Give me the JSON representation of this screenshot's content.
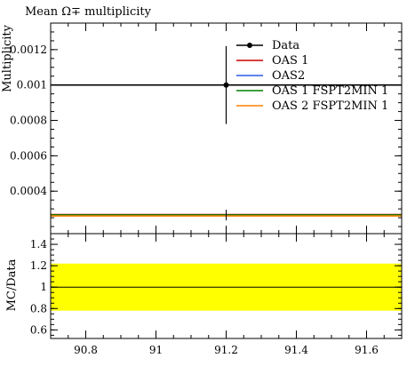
{
  "chart_data": [
    {
      "type": "scatter",
      "title": "Mean Ω∓ multiplicity",
      "xlabel": "",
      "ylabel": "Multiplicity",
      "xlim": [
        90.7,
        91.7
      ],
      "ylim": [
        0.00016,
        0.00135
      ],
      "y_ticks": [
        0.0004,
        0.0006,
        0.0008,
        0.001,
        0.0012
      ],
      "y_tick_labels": [
        "0.0004",
        "0.0006",
        "0.0008",
        "0.001",
        "0.0012"
      ],
      "legend_position": "top-right",
      "series": [
        {
          "name": "Data",
          "kind": "point",
          "color": "#000000",
          "x": 91.2,
          "y": 0.001,
          "yerr": 0.00022,
          "line_y": 0.001
        },
        {
          "name": "OAS 1",
          "kind": "line",
          "color": "#cc0000",
          "y": 0.000268
        },
        {
          "name": "OAS2",
          "kind": "line",
          "color": "#2b5ce6",
          "y": 0.000262
        },
        {
          "name": "OAS 1 FSPT2MIN 1",
          "kind": "line",
          "color": "#008000",
          "y": 0.000266
        },
        {
          "name": "OAS 2 FSPT2MIN 1",
          "kind": "line",
          "color": "#ff8000",
          "y": 0.00026
        }
      ]
    },
    {
      "type": "area",
      "title": "",
      "xlabel": "",
      "ylabel": "MC/Data",
      "xlim": [
        90.7,
        91.7
      ],
      "ylim": [
        0.52,
        1.5
      ],
      "x_ticks": [
        90.8,
        91,
        91.2,
        91.4,
        91.6
      ],
      "x_tick_labels": [
        "90.8",
        "91",
        "91.2",
        "91.4",
        "91.6"
      ],
      "y_ticks": [
        0.6,
        0.8,
        1,
        1.2,
        1.4
      ],
      "y_tick_labels": [
        "0.6",
        "0.8",
        "1",
        "1.2",
        "1.4"
      ],
      "band": {
        "low": 0.78,
        "high": 1.22,
        "color": "#ffff00"
      },
      "reference_line": 1.0,
      "ratio_lines_below_axis": true
    }
  ]
}
